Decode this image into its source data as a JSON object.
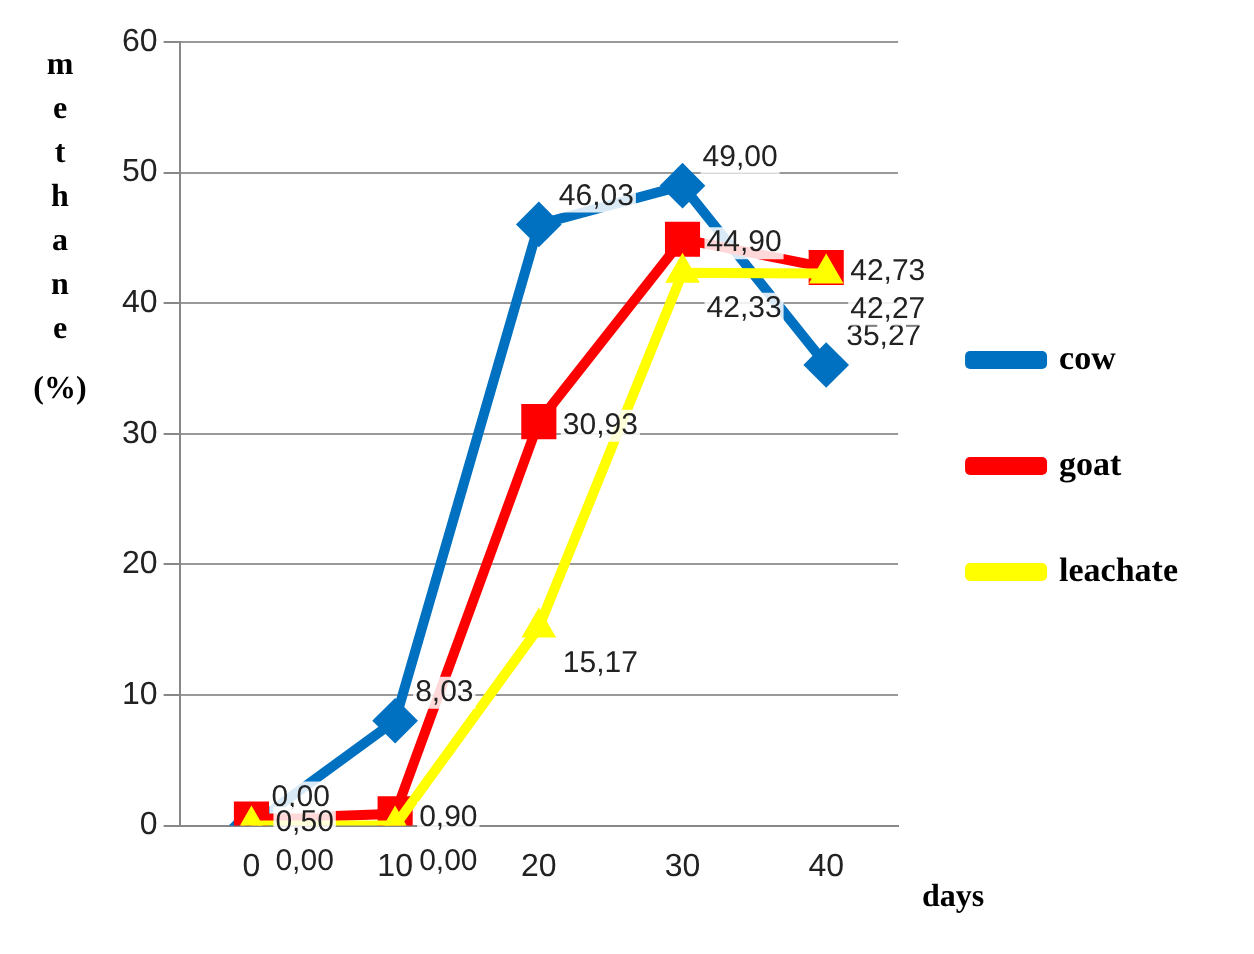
{
  "chart_data": {
    "type": "line",
    "xlabel": "days",
    "ylabel": "methane (%)",
    "categories": [
      "0",
      "10",
      "20",
      "30",
      "40"
    ],
    "series": [
      {
        "name": "cow",
        "color": "#0070c0",
        "marker": "diamond",
        "values": [
          0,
          8.03,
          46.03,
          49,
          35.27
        ],
        "value_labels": [
          "0,00",
          "8,03",
          "46,03",
          "49,00",
          "35,27"
        ]
      },
      {
        "name": "goat",
        "color": "#ff0000",
        "marker": "square",
        "values": [
          0.5,
          0.9,
          30.93,
          44.9,
          42.73
        ],
        "value_labels": [
          "0,50",
          "0,90",
          "30,93",
          "44,90",
          "42,73"
        ]
      },
      {
        "name": "leachate",
        "color": "#ffff00",
        "marker": "triangle",
        "values": [
          0,
          0,
          15.17,
          42.33,
          42.27
        ],
        "value_labels": [
          "0,00",
          "0,00",
          "15,17",
          "42,33",
          "42,27"
        ]
      }
    ],
    "ylim": [
      0,
      60
    ],
    "yticks": [
      0,
      10,
      20,
      30,
      40,
      50,
      60
    ],
    "grid": "y",
    "legend": "right"
  }
}
